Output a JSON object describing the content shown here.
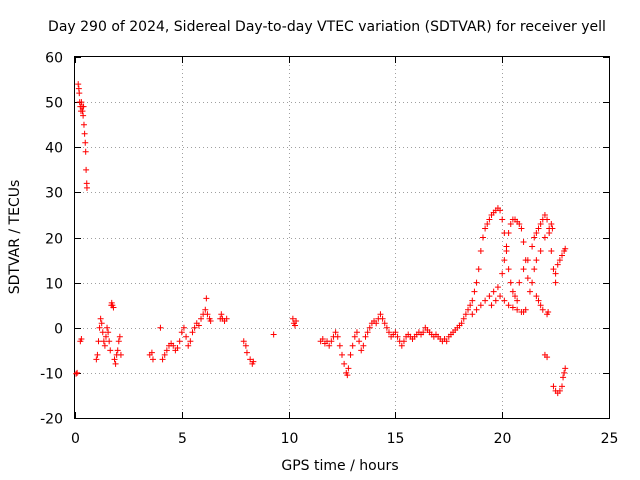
{
  "chart_data": {
    "type": "scatter",
    "title": "Day 290 of 2024, Sidereal Day-to-day VTEC variation (SDTVAR) for receiver yell",
    "xlabel": "GPS time / hours",
    "ylabel": "SDTVAR / TECUs",
    "xlim": [
      0,
      25
    ],
    "ylim": [
      -20,
      60
    ],
    "xticks": [
      0,
      5,
      10,
      15,
      20,
      25
    ],
    "yticks": [
      -20,
      -10,
      0,
      10,
      20,
      30,
      40,
      50,
      60
    ],
    "xtick_labels": [
      "0",
      "5",
      "10",
      "15",
      "20",
      "25"
    ],
    "ytick_labels": [
      "-20",
      "-10",
      "0",
      "10",
      "20",
      "30",
      "40",
      "50",
      "60"
    ],
    "grid": true,
    "marker": "+",
    "color": "#ff0000",
    "series": [
      {
        "name": "SDTVAR",
        "points": [
          [
            0.05,
            -10.2
          ],
          [
            0.1,
            -10.0
          ],
          [
            0.15,
            54
          ],
          [
            0.18,
            53
          ],
          [
            0.2,
            52
          ],
          [
            0.22,
            50
          ],
          [
            0.25,
            49
          ],
          [
            0.28,
            48
          ],
          [
            0.3,
            50
          ],
          [
            0.33,
            49
          ],
          [
            0.35,
            48
          ],
          [
            0.38,
            47
          ],
          [
            0.4,
            49
          ],
          [
            0.42,
            45
          ],
          [
            0.45,
            43
          ],
          [
            0.48,
            41
          ],
          [
            0.5,
            39
          ],
          [
            0.52,
            35
          ],
          [
            0.55,
            32
          ],
          [
            0.56,
            31
          ],
          [
            0.25,
            -3
          ],
          [
            0.3,
            -2.5
          ],
          [
            1.0,
            -7
          ],
          [
            1.05,
            -6
          ],
          [
            1.1,
            -3
          ],
          [
            1.15,
            0
          ],
          [
            1.2,
            2
          ],
          [
            1.25,
            1
          ],
          [
            1.3,
            -1
          ],
          [
            1.35,
            -3
          ],
          [
            1.4,
            -4
          ],
          [
            1.45,
            -2
          ],
          [
            1.5,
            0
          ],
          [
            1.55,
            -1
          ],
          [
            1.6,
            -3
          ],
          [
            1.65,
            -5
          ],
          [
            1.7,
            5
          ],
          [
            1.72,
            5.5
          ],
          [
            1.75,
            5
          ],
          [
            1.8,
            4.5
          ],
          [
            1.85,
            -7
          ],
          [
            1.9,
            -8
          ],
          [
            1.95,
            -6
          ],
          [
            2.0,
            -5
          ],
          [
            2.05,
            -3
          ],
          [
            2.1,
            -2
          ],
          [
            2.15,
            -6
          ],
          [
            3.5,
            -6
          ],
          [
            3.6,
            -5.5
          ],
          [
            3.65,
            -7
          ],
          [
            4.0,
            0
          ],
          [
            4.1,
            -7
          ],
          [
            4.2,
            -6
          ],
          [
            4.3,
            -5
          ],
          [
            4.4,
            -4
          ],
          [
            4.5,
            -3.5
          ],
          [
            4.6,
            -4
          ],
          [
            4.7,
            -5
          ],
          [
            4.8,
            -4.5
          ],
          [
            4.9,
            -3
          ],
          [
            5.0,
            -1
          ],
          [
            5.1,
            0
          ],
          [
            5.2,
            -2
          ],
          [
            5.3,
            -4
          ],
          [
            5.4,
            -3
          ],
          [
            5.5,
            -1
          ],
          [
            5.6,
            0
          ],
          [
            5.7,
            1
          ],
          [
            5.8,
            0.5
          ],
          [
            5.9,
            2
          ],
          [
            6.0,
            3
          ],
          [
            6.1,
            4
          ],
          [
            6.15,
            6.5
          ],
          [
            6.2,
            3
          ],
          [
            6.3,
            2
          ],
          [
            6.35,
            1.5
          ],
          [
            6.8,
            2
          ],
          [
            6.85,
            3
          ],
          [
            6.9,
            2
          ],
          [
            7.0,
            1.5
          ],
          [
            7.1,
            2
          ],
          [
            7.9,
            -3
          ],
          [
            8.0,
            -4
          ],
          [
            8.05,
            -5.5
          ],
          [
            8.2,
            -7
          ],
          [
            8.3,
            -8
          ],
          [
            8.35,
            -7.5
          ],
          [
            9.3,
            -1.5
          ],
          [
            10.2,
            2
          ],
          [
            10.25,
            1
          ],
          [
            10.3,
            0.5
          ],
          [
            10.35,
            1.5
          ],
          [
            11.5,
            -3
          ],
          [
            11.6,
            -2.5
          ],
          [
            11.7,
            -3.5
          ],
          [
            11.8,
            -3
          ],
          [
            11.9,
            -4
          ],
          [
            12.0,
            -3
          ],
          [
            12.1,
            -2
          ],
          [
            12.2,
            -1
          ],
          [
            12.3,
            -2
          ],
          [
            12.4,
            -4
          ],
          [
            12.5,
            -6
          ],
          [
            12.6,
            -8
          ],
          [
            12.7,
            -10
          ],
          [
            12.75,
            -10.5
          ],
          [
            12.8,
            -9
          ],
          [
            12.9,
            -6
          ],
          [
            13.0,
            -4
          ],
          [
            13.1,
            -2
          ],
          [
            13.2,
            -1
          ],
          [
            13.3,
            -3
          ],
          [
            13.4,
            -5
          ],
          [
            13.5,
            -4
          ],
          [
            13.6,
            -2
          ],
          [
            13.7,
            -1
          ],
          [
            13.8,
            0
          ],
          [
            13.9,
            1
          ],
          [
            14.0,
            1.5
          ],
          [
            14.1,
            1
          ],
          [
            14.2,
            2
          ],
          [
            14.3,
            3
          ],
          [
            14.4,
            2
          ],
          [
            14.5,
            1
          ],
          [
            14.6,
            0
          ],
          [
            14.7,
            -1
          ],
          [
            14.8,
            -2
          ],
          [
            14.9,
            -1.5
          ],
          [
            15.0,
            -1
          ],
          [
            15.1,
            -2
          ],
          [
            15.2,
            -3
          ],
          [
            15.3,
            -4
          ],
          [
            15.4,
            -3
          ],
          [
            15.5,
            -2
          ],
          [
            15.6,
            -1.5
          ],
          [
            15.7,
            -2
          ],
          [
            15.8,
            -2.5
          ],
          [
            15.9,
            -2
          ],
          [
            16.0,
            -1.5
          ],
          [
            16.1,
            -1
          ],
          [
            16.2,
            -1.5
          ],
          [
            16.3,
            -1
          ],
          [
            16.4,
            0
          ],
          [
            16.5,
            -0.5
          ],
          [
            16.6,
            -1
          ],
          [
            16.7,
            -1.5
          ],
          [
            16.8,
            -2
          ],
          [
            16.9,
            -1.5
          ],
          [
            17.0,
            -2
          ],
          [
            17.1,
            -2.5
          ],
          [
            17.2,
            -3
          ],
          [
            17.3,
            -2.5
          ],
          [
            17.4,
            -3
          ],
          [
            17.5,
            -2
          ],
          [
            17.6,
            -1.5
          ],
          [
            17.7,
            -1
          ],
          [
            17.8,
            -0.5
          ],
          [
            17.9,
            0
          ],
          [
            18.0,
            0.5
          ],
          [
            18.1,
            1
          ],
          [
            18.2,
            2
          ],
          [
            18.3,
            3
          ],
          [
            18.4,
            4
          ],
          [
            18.5,
            5
          ],
          [
            18.6,
            6
          ],
          [
            18.7,
            8
          ],
          [
            18.8,
            10
          ],
          [
            18.9,
            13
          ],
          [
            19.0,
            17
          ],
          [
            19.1,
            20
          ],
          [
            19.2,
            22
          ],
          [
            19.3,
            23
          ],
          [
            19.4,
            24
          ],
          [
            19.5,
            25
          ],
          [
            19.6,
            25.5
          ],
          [
            19.7,
            26
          ],
          [
            19.8,
            26.5
          ],
          [
            19.9,
            26
          ],
          [
            20.0,
            24
          ],
          [
            20.1,
            21
          ],
          [
            20.2,
            17
          ],
          [
            20.3,
            13
          ],
          [
            20.4,
            10
          ],
          [
            20.5,
            8
          ],
          [
            20.6,
            7
          ],
          [
            20.7,
            6
          ],
          [
            18.6,
            3
          ],
          [
            18.8,
            4
          ],
          [
            19.0,
            5
          ],
          [
            19.2,
            6
          ],
          [
            19.4,
            7
          ],
          [
            19.6,
            8
          ],
          [
            19.8,
            9
          ],
          [
            20.0,
            12
          ],
          [
            20.1,
            15
          ],
          [
            20.2,
            18
          ],
          [
            20.3,
            21
          ],
          [
            20.4,
            23
          ],
          [
            20.5,
            24
          ],
          [
            20.6,
            24
          ],
          [
            20.7,
            23.5
          ],
          [
            20.8,
            23
          ],
          [
            20.9,
            22
          ],
          [
            21.0,
            19
          ],
          [
            21.1,
            15
          ],
          [
            21.2,
            11
          ],
          [
            21.3,
            8
          ],
          [
            19.5,
            5
          ],
          [
            19.7,
            6
          ],
          [
            19.9,
            7
          ],
          [
            20.1,
            6
          ],
          [
            20.3,
            5
          ],
          [
            20.5,
            4.5
          ],
          [
            20.7,
            4
          ],
          [
            20.9,
            3.5
          ],
          [
            21.0,
            3.5
          ],
          [
            21.1,
            4
          ],
          [
            20.8,
            10
          ],
          [
            21.0,
            13
          ],
          [
            21.2,
            15
          ],
          [
            21.4,
            18
          ],
          [
            21.5,
            20
          ],
          [
            21.6,
            21
          ],
          [
            21.7,
            22
          ],
          [
            21.8,
            23
          ],
          [
            21.9,
            24
          ],
          [
            22.0,
            25
          ],
          [
            22.1,
            24
          ],
          [
            22.2,
            21
          ],
          [
            22.3,
            17
          ],
          [
            22.4,
            13
          ],
          [
            22.5,
            10
          ],
          [
            21.4,
            10
          ],
          [
            21.5,
            13
          ],
          [
            21.6,
            15
          ],
          [
            21.8,
            17
          ],
          [
            22.0,
            20
          ],
          [
            22.2,
            22
          ],
          [
            22.3,
            23
          ],
          [
            22.35,
            22
          ],
          [
            21.6,
            7
          ],
          [
            21.7,
            6
          ],
          [
            21.8,
            5
          ],
          [
            21.9,
            4
          ],
          [
            22.1,
            3
          ],
          [
            22.15,
            3.5
          ],
          [
            22.5,
            12
          ],
          [
            22.6,
            14
          ],
          [
            22.7,
            15
          ],
          [
            22.8,
            16
          ],
          [
            22.9,
            17
          ],
          [
            22.95,
            17.5
          ],
          [
            22.0,
            -6
          ],
          [
            22.1,
            -6.5
          ],
          [
            22.4,
            -13
          ],
          [
            22.5,
            -14
          ],
          [
            22.6,
            -14.5
          ],
          [
            22.7,
            -14
          ],
          [
            22.8,
            -13
          ],
          [
            22.85,
            -11
          ],
          [
            22.9,
            -10
          ],
          [
            22.95,
            -9
          ]
        ]
      }
    ]
  }
}
